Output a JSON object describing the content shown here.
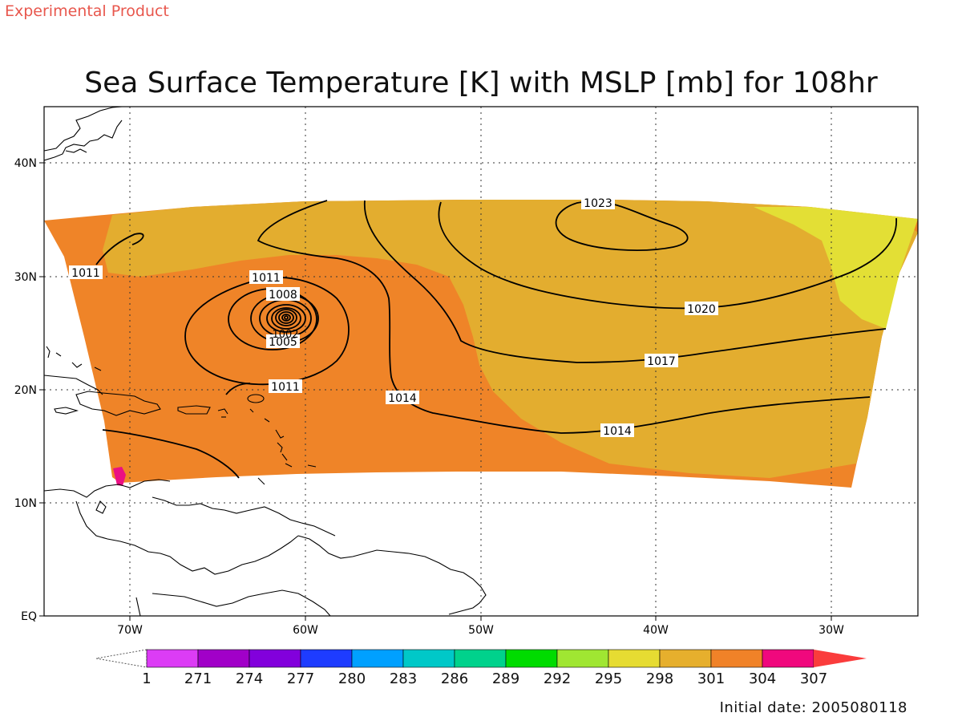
{
  "header": {
    "product_label": "Experimental Product",
    "title": "Sea Surface Temperature [K] with MSLP [mb] for 108hr"
  },
  "map": {
    "lat_ticks": [
      "40N",
      "30N",
      "20N",
      "10N",
      "EQ"
    ],
    "lon_ticks": [
      "70W",
      "60W",
      "50W",
      "40W",
      "30W"
    ],
    "fill_colors": {
      "warm_orange": "#ef8428",
      "gold": "#e3ad2f",
      "yellow": "#e3df35",
      "magenta": "#eb0f83"
    },
    "isobar_labels": [
      "1023",
      "1020",
      "1017",
      "1014",
      "1014",
      "1011",
      "1011",
      "1011",
      "1008",
      "1005",
      "1002"
    ]
  },
  "colorbar": {
    "labels": [
      "1",
      "271",
      "274",
      "277",
      "280",
      "283",
      "286",
      "289",
      "292",
      "295",
      "298",
      "301",
      "304",
      "307"
    ],
    "colors": [
      "#dc3cf5",
      "#a100c8",
      "#8200dc",
      "#1e3cff",
      "#00a0ff",
      "#00c8c8",
      "#00d28c",
      "#00dc00",
      "#a0e632",
      "#e6dc32",
      "#e6af2d",
      "#f08228",
      "#f0087d",
      "#fa3c3c"
    ]
  },
  "footer": {
    "initial_date": "Initial date: 2005080118"
  }
}
